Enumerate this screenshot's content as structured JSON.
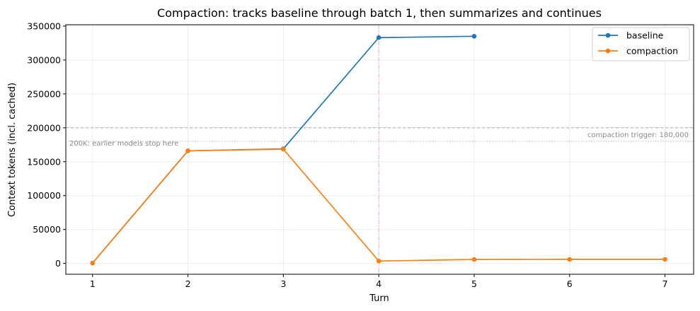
{
  "chart_data": {
    "type": "line",
    "title": "Compaction: tracks baseline through batch 1, then summarizes and continues",
    "xlabel": "Turn",
    "ylabel": "Context tokens (incl. cached)",
    "x_ticks": [
      1,
      2,
      3,
      4,
      5,
      6,
      7
    ],
    "y_ticks": [
      0,
      50000,
      100000,
      150000,
      200000,
      250000,
      300000,
      350000
    ],
    "xlim": [
      0.72,
      7.3
    ],
    "ylim": [
      -16000,
      352000
    ],
    "grid": true,
    "legend_position": "top-right",
    "series": [
      {
        "name": "baseline",
        "color": "#1f77b4",
        "x": [
          1,
          2,
          3,
          4,
          5
        ],
        "y": [
          500,
          166000,
          169000,
          333000,
          335000
        ]
      },
      {
        "name": "compaction",
        "color": "#ff7f0e",
        "x": [
          1,
          2,
          3,
          4,
          5,
          6,
          7
        ],
        "y": [
          500,
          166000,
          168500,
          3500,
          5800,
          6000,
          6000
        ]
      }
    ],
    "reference_lines": [
      {
        "orientation": "horizontal",
        "value": 200000,
        "style": "dashed",
        "color": "#b0b0b0",
        "label": "200K: earlier models stop here"
      },
      {
        "orientation": "horizontal",
        "value": 180000,
        "style": "dotted",
        "color": "#b0b0b0",
        "label": "compaction trigger: 180,000"
      },
      {
        "orientation": "vertical",
        "value": 4,
        "style": "dashdot",
        "color": "#f3b49a",
        "label": ""
      }
    ]
  }
}
